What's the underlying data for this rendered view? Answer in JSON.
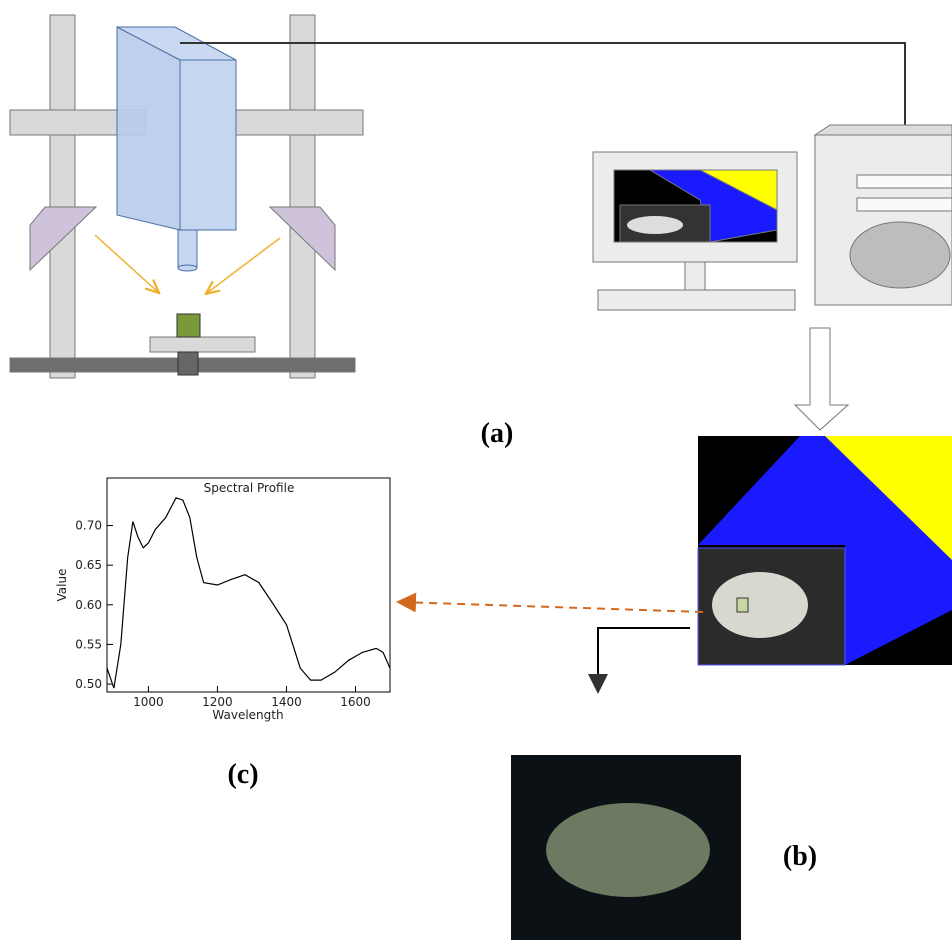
{
  "labels": {
    "a": "(a)",
    "b": "(b)",
    "c": "(c)"
  },
  "chart_data": {
    "type": "line",
    "title": "Spectral Profile",
    "xlabel": "Wavelength",
    "ylabel": "Value",
    "x": [
      880,
      900,
      920,
      940,
      955,
      970,
      985,
      1000,
      1020,
      1050,
      1080,
      1100,
      1120,
      1140,
      1160,
      1200,
      1240,
      1280,
      1320,
      1360,
      1400,
      1440,
      1470,
      1500,
      1540,
      1580,
      1620,
      1660,
      1680,
      1700
    ],
    "values": [
      0.52,
      0.495,
      0.55,
      0.66,
      0.705,
      0.685,
      0.672,
      0.678,
      0.695,
      0.71,
      0.735,
      0.732,
      0.71,
      0.66,
      0.628,
      0.625,
      0.632,
      0.638,
      0.628,
      0.602,
      0.575,
      0.52,
      0.505,
      0.505,
      0.515,
      0.53,
      0.54,
      0.545,
      0.54,
      0.52
    ],
    "color": "#000000",
    "xlim": [
      880,
      1700
    ],
    "ylim": [
      0.49,
      0.76
    ],
    "xticks": [
      1000,
      1200,
      1400,
      1600
    ],
    "yticks": [
      {
        "value": 0.5,
        "label": "0.50"
      },
      {
        "value": 0.55,
        "label": "0.55"
      },
      {
        "value": 0.6,
        "label": "0.60"
      },
      {
        "value": 0.65,
        "label": "0.65"
      },
      {
        "value": 0.7,
        "label": "0.70"
      }
    ]
  }
}
